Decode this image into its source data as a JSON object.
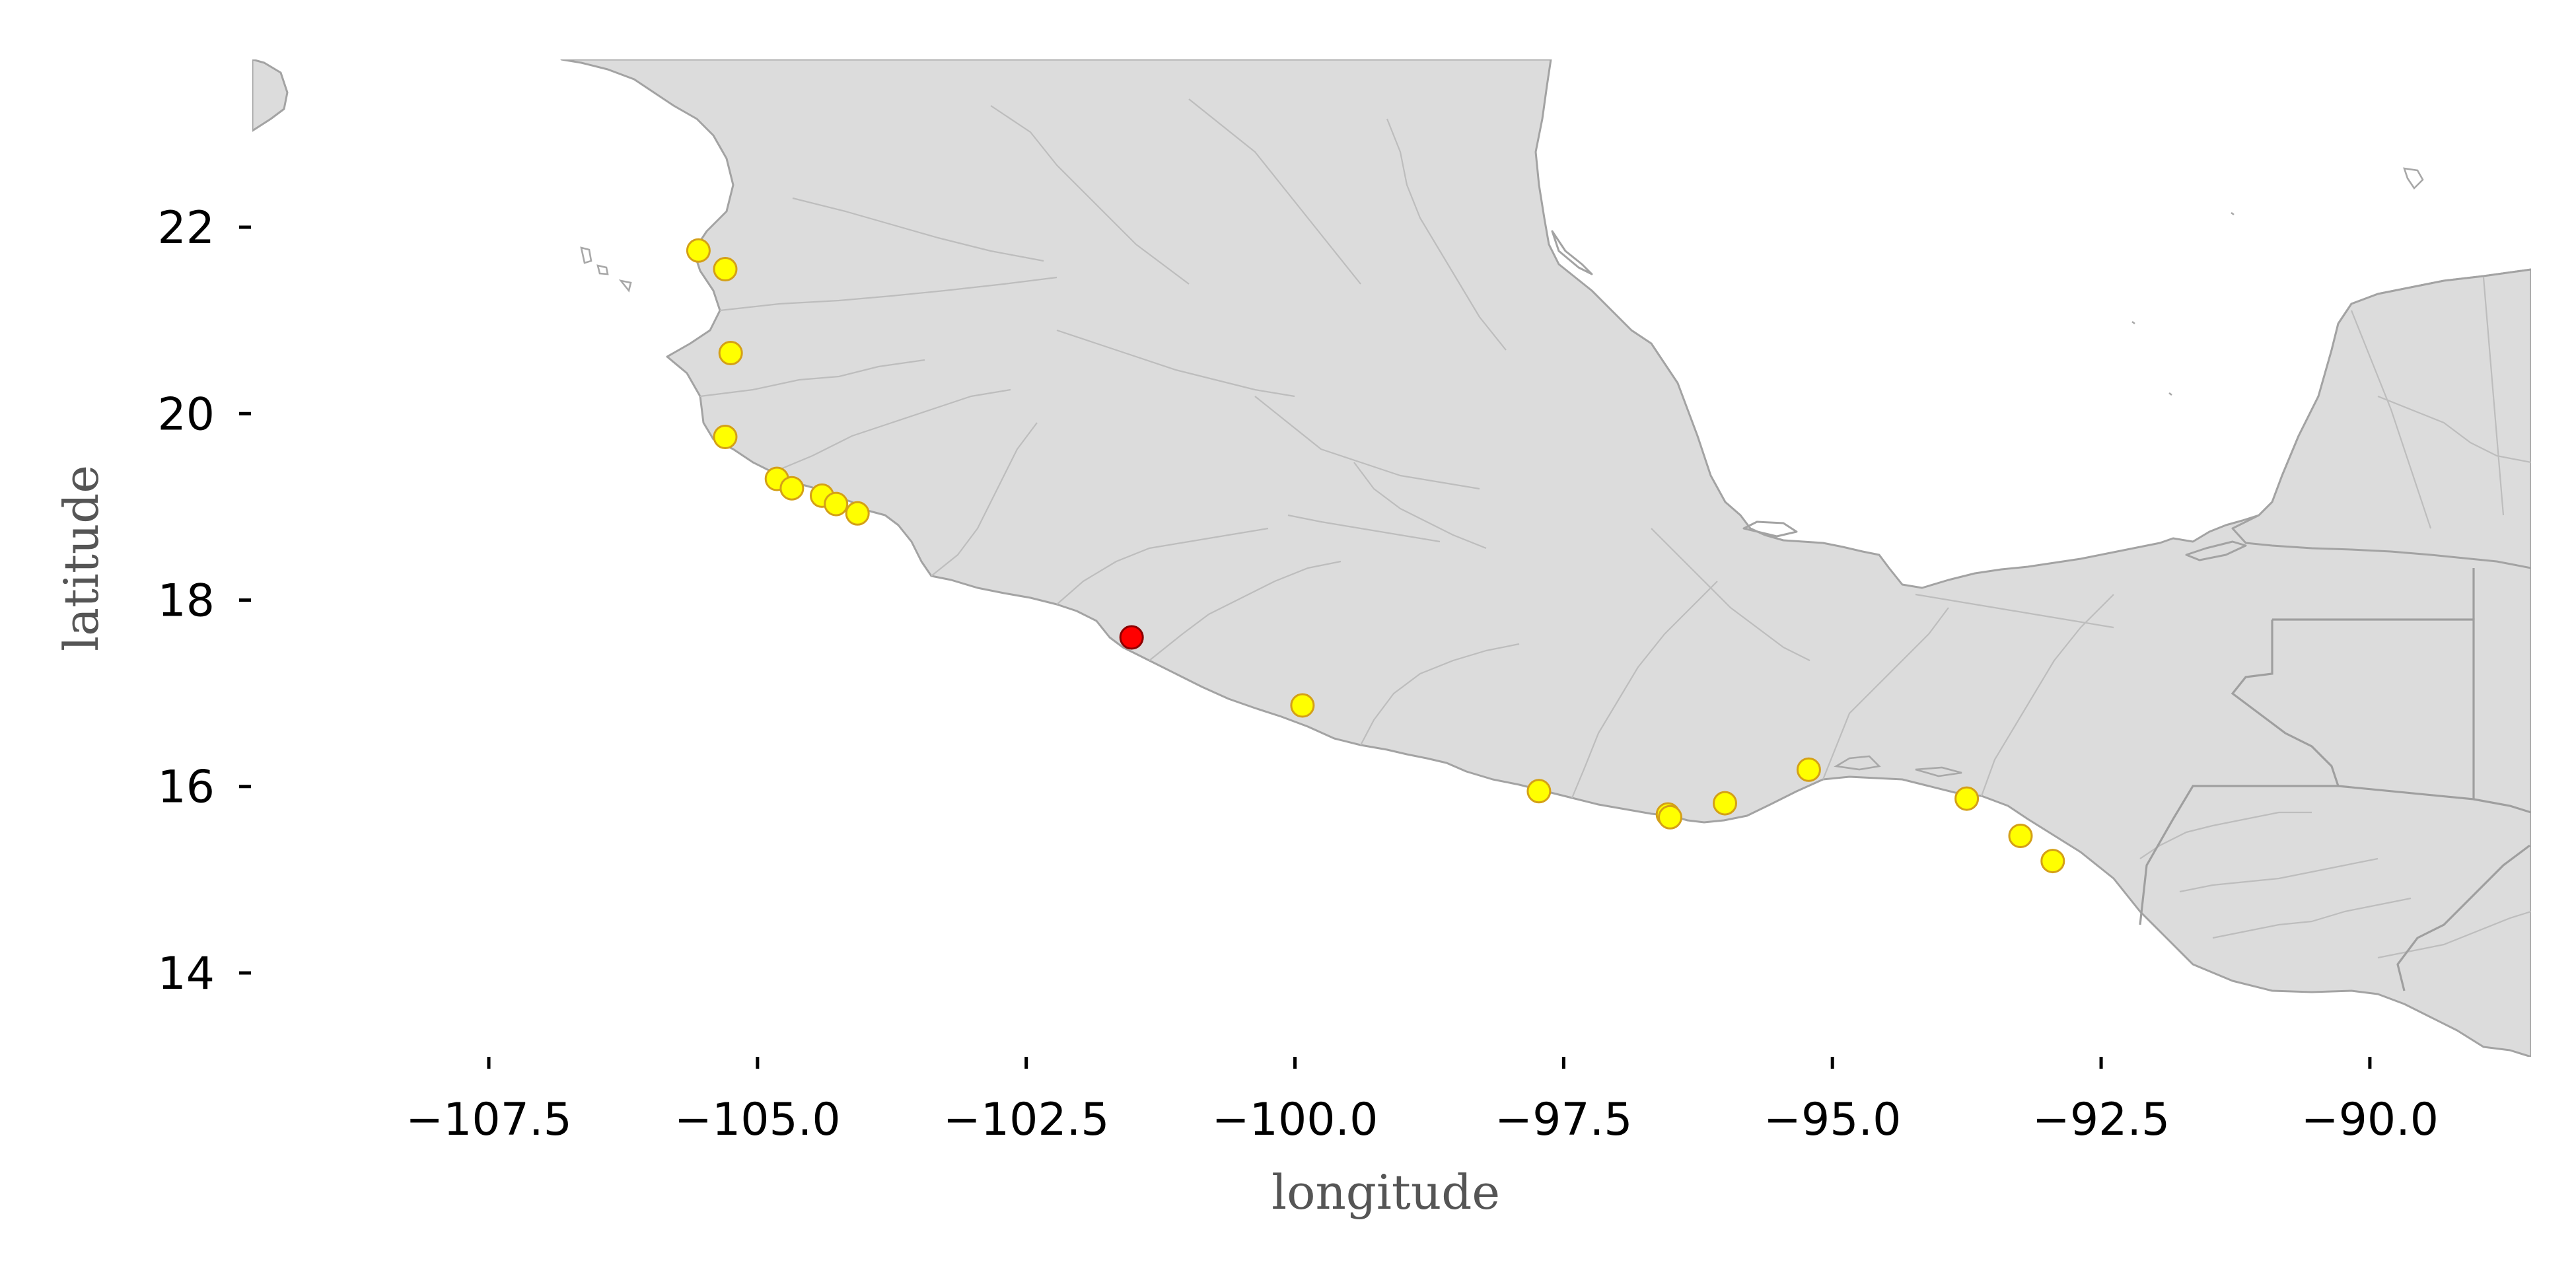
{
  "map": {
    "xlabel": "longitude",
    "ylabel": "latitude",
    "x_ticks": [
      {
        "value": -107.5,
        "label": "−107.5"
      },
      {
        "value": -105.0,
        "label": "−105.0"
      },
      {
        "value": -102.5,
        "label": "−102.5"
      },
      {
        "value": -100.0,
        "label": "−100.0"
      },
      {
        "value": -97.5,
        "label": "−97.5"
      },
      {
        "value": -95.0,
        "label": "−95.0"
      },
      {
        "value": -92.5,
        "label": "−92.5"
      },
      {
        "value": -90.0,
        "label": "−90.0"
      }
    ],
    "y_ticks": [
      {
        "value": 14,
        "label": "14"
      },
      {
        "value": 16,
        "label": "16"
      },
      {
        "value": 18,
        "label": "18"
      },
      {
        "value": 20,
        "label": "20"
      },
      {
        "value": 22,
        "label": "22"
      }
    ],
    "xlim": [
      -109.7,
      -88.5
    ],
    "ylim": [
      13.1,
      23.8
    ],
    "colors": {
      "land": "#dcdcdc",
      "boundary": "#a3a3a3",
      "marker_default": "#ffff00",
      "marker_default_edge": "#d4a017",
      "marker_highlight": "#ff0000",
      "marker_highlight_edge": "#8b0000"
    },
    "points": [
      {
        "lon": -105.55,
        "lat": 21.75,
        "highlight": false
      },
      {
        "lon": -105.3,
        "lat": 21.55,
        "highlight": false
      },
      {
        "lon": -105.25,
        "lat": 20.65,
        "highlight": false
      },
      {
        "lon": -105.3,
        "lat": 19.75,
        "highlight": false
      },
      {
        "lon": -104.82,
        "lat": 19.3,
        "highlight": false
      },
      {
        "lon": -104.68,
        "lat": 19.2,
        "highlight": false
      },
      {
        "lon": -104.4,
        "lat": 19.12,
        "highlight": false
      },
      {
        "lon": -104.27,
        "lat": 19.03,
        "highlight": false
      },
      {
        "lon": -104.07,
        "lat": 18.93,
        "highlight": false
      },
      {
        "lon": -101.52,
        "lat": 17.6,
        "highlight": true
      },
      {
        "lon": -99.93,
        "lat": 16.87,
        "highlight": false
      },
      {
        "lon": -97.73,
        "lat": 15.95,
        "highlight": false
      },
      {
        "lon": -96.53,
        "lat": 15.7,
        "highlight": false
      },
      {
        "lon": -96.51,
        "lat": 15.67,
        "highlight": false
      },
      {
        "lon": -96.0,
        "lat": 15.82,
        "highlight": false
      },
      {
        "lon": -95.22,
        "lat": 16.18,
        "highlight": false
      },
      {
        "lon": -93.75,
        "lat": 15.87,
        "highlight": false
      },
      {
        "lon": -93.25,
        "lat": 15.47,
        "highlight": false
      },
      {
        "lon": -92.95,
        "lat": 15.2,
        "highlight": false
      }
    ]
  }
}
